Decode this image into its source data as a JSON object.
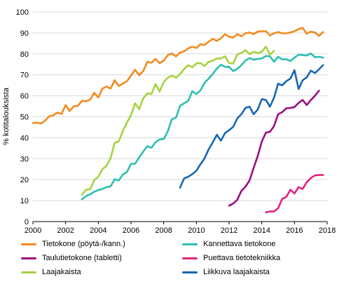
{
  "chart_data": {
    "type": "line",
    "title": "",
    "xlabel": "",
    "ylabel": "% kotitalouksista",
    "xlim": [
      2000,
      2018
    ],
    "ylim": [
      0,
      100
    ],
    "x_ticks": [
      "2000",
      "2002",
      "2004",
      "2006",
      "2008",
      "2010",
      "2012",
      "2014",
      "2016",
      "2018"
    ],
    "y_ticks": [
      "0",
      "10",
      "20",
      "30",
      "40",
      "50",
      "60",
      "70",
      "80",
      "90",
      "100"
    ],
    "grid": "horizontal",
    "legend_position": "bottom",
    "series": [
      {
        "name": "Tietokone (pöytä-/kann.)",
        "color": "#f28a1e",
        "points": [
          [
            2000.0,
            47
          ],
          [
            2000.25,
            47.2
          ],
          [
            2000.5,
            46.8
          ],
          [
            2000.75,
            48.2
          ],
          [
            2001.0,
            50.2
          ],
          [
            2001.25,
            50.7
          ],
          [
            2001.5,
            52
          ],
          [
            2001.75,
            51.3
          ],
          [
            2002.0,
            55.6
          ],
          [
            2002.25,
            52.7
          ],
          [
            2002.5,
            55
          ],
          [
            2002.75,
            55.2
          ],
          [
            2003.0,
            57.6
          ],
          [
            2003.25,
            57.4
          ],
          [
            2003.5,
            58.2
          ],
          [
            2003.75,
            61.4
          ],
          [
            2004.0,
            59.2
          ],
          [
            2004.25,
            63.4
          ],
          [
            2004.5,
            64.4
          ],
          [
            2004.75,
            63.4
          ],
          [
            2005.0,
            67.4
          ],
          [
            2005.25,
            64.6
          ],
          [
            2005.5,
            65.8
          ],
          [
            2005.75,
            67
          ],
          [
            2006.0,
            69.6
          ],
          [
            2006.25,
            72.4
          ],
          [
            2006.5,
            69.8
          ],
          [
            2006.75,
            71.8
          ],
          [
            2007.0,
            76.2
          ],
          [
            2007.25,
            75.8
          ],
          [
            2007.5,
            77.6
          ],
          [
            2007.75,
            75.6
          ],
          [
            2008.0,
            76.8
          ],
          [
            2008.25,
            79.4
          ],
          [
            2008.5,
            80.2
          ],
          [
            2008.75,
            78.8
          ],
          [
            2009.0,
            80.6
          ],
          [
            2009.25,
            81.2
          ],
          [
            2009.5,
            82.6
          ],
          [
            2009.75,
            83.4
          ],
          [
            2010.0,
            82.8
          ],
          [
            2010.25,
            84.6
          ],
          [
            2010.5,
            84.2
          ],
          [
            2010.75,
            85.8
          ],
          [
            2011.0,
            87.2
          ],
          [
            2011.25,
            86.2
          ],
          [
            2011.5,
            87.4
          ],
          [
            2011.75,
            89.4
          ],
          [
            2012.0,
            88.2
          ],
          [
            2012.25,
            87.8
          ],
          [
            2012.5,
            89.4
          ],
          [
            2012.75,
            88.4
          ],
          [
            2013.0,
            89.8
          ],
          [
            2013.25,
            90.2
          ],
          [
            2013.5,
            89.4
          ],
          [
            2013.75,
            90.6
          ],
          [
            2014.0,
            90.8
          ],
          [
            2014.25,
            90.8
          ],
          [
            2014.5,
            88.8
          ],
          [
            2014.75,
            89.8
          ],
          [
            2015.0,
            90.4
          ],
          [
            2015.25,
            89.8
          ],
          [
            2015.5,
            89.8
          ],
          [
            2015.75,
            90.2
          ],
          [
            2016.0,
            90.8
          ],
          [
            2016.25,
            91.8
          ],
          [
            2016.5,
            92.4
          ],
          [
            2016.75,
            89.6
          ],
          [
            2017.0,
            90.6
          ],
          [
            2017.25,
            90.2
          ],
          [
            2017.5,
            88.6
          ],
          [
            2017.75,
            90.4
          ]
        ]
      },
      {
        "name": "Kannettava tietokone",
        "color": "#2ebfb0",
        "points": [
          [
            2003.0,
            10.6
          ],
          [
            2003.25,
            12.2
          ],
          [
            2003.5,
            13
          ],
          [
            2003.75,
            14.2
          ],
          [
            2004.0,
            15
          ],
          [
            2004.25,
            15.6
          ],
          [
            2004.5,
            16.4
          ],
          [
            2004.75,
            16.8
          ],
          [
            2005.0,
            20.2
          ],
          [
            2005.25,
            19.6
          ],
          [
            2005.5,
            22.4
          ],
          [
            2005.75,
            23.6
          ],
          [
            2006.0,
            27.6
          ],
          [
            2006.25,
            27.6
          ],
          [
            2006.5,
            30.6
          ],
          [
            2006.75,
            33.4
          ],
          [
            2007.0,
            36
          ],
          [
            2007.25,
            35.2
          ],
          [
            2007.5,
            37.8
          ],
          [
            2007.75,
            39.2
          ],
          [
            2008.0,
            39.4
          ],
          [
            2008.25,
            43
          ],
          [
            2008.5,
            48.8
          ],
          [
            2008.75,
            49.6
          ],
          [
            2009.0,
            55.2
          ],
          [
            2009.25,
            56.4
          ],
          [
            2009.5,
            57.6
          ],
          [
            2009.75,
            62.2
          ],
          [
            2010.0,
            60.8
          ],
          [
            2010.25,
            62.6
          ],
          [
            2010.5,
            66.2
          ],
          [
            2010.75,
            68.2
          ],
          [
            2011.0,
            70.4
          ],
          [
            2011.25,
            73
          ],
          [
            2011.5,
            74.8
          ],
          [
            2011.75,
            73.8
          ],
          [
            2012.0,
            73.8
          ],
          [
            2012.25,
            71.8
          ],
          [
            2012.5,
            72.8
          ],
          [
            2012.75,
            74.6
          ],
          [
            2013.0,
            76.8
          ],
          [
            2013.25,
            78
          ],
          [
            2013.5,
            77.2
          ],
          [
            2013.75,
            77.6
          ],
          [
            2014.0,
            77.8
          ],
          [
            2014.25,
            79
          ],
          [
            2014.5,
            78.8
          ],
          [
            2014.75,
            76.2
          ],
          [
            2015.0,
            78.6
          ],
          [
            2015.25,
            77.4
          ],
          [
            2015.5,
            77.4
          ],
          [
            2015.75,
            76.6
          ],
          [
            2016.0,
            78.2
          ],
          [
            2016.25,
            79.6
          ],
          [
            2016.5,
            79.4
          ],
          [
            2016.75,
            79.2
          ],
          [
            2017.0,
            80.2
          ],
          [
            2017.25,
            78.4
          ],
          [
            2017.5,
            78.6
          ],
          [
            2017.75,
            78.2
          ]
        ]
      },
      {
        "name": "Taulutietokone (tabletti)",
        "color": "#9a0f80",
        "points": [
          [
            2012.0,
            7.6
          ],
          [
            2012.25,
            8.6
          ],
          [
            2012.5,
            10.4
          ],
          [
            2012.75,
            14.6
          ],
          [
            2013.0,
            16.6
          ],
          [
            2013.25,
            19.6
          ],
          [
            2013.5,
            25.6
          ],
          [
            2013.75,
            31.2
          ],
          [
            2014.0,
            38.2
          ],
          [
            2014.25,
            42.4
          ],
          [
            2014.5,
            42.8
          ],
          [
            2014.75,
            45.6
          ],
          [
            2015.0,
            51.2
          ],
          [
            2015.25,
            52.2
          ],
          [
            2015.5,
            54
          ],
          [
            2015.75,
            54.2
          ],
          [
            2016.0,
            54.6
          ],
          [
            2016.25,
            56.6
          ],
          [
            2016.5,
            58
          ],
          [
            2016.75,
            55.6
          ],
          [
            2017.0,
            58
          ],
          [
            2017.25,
            60
          ],
          [
            2017.5,
            62.4
          ]
        ]
      },
      {
        "name": "Puettava tietotekniikka",
        "color": "#e0247d",
        "points": [
          [
            2014.25,
            4.4
          ],
          [
            2014.5,
            4.8
          ],
          [
            2014.75,
            4.8
          ],
          [
            2015.0,
            6.4
          ],
          [
            2015.25,
            10.8
          ],
          [
            2015.5,
            11.8
          ],
          [
            2015.75,
            15.2
          ],
          [
            2016.0,
            13.4
          ],
          [
            2016.25,
            16.4
          ],
          [
            2016.5,
            15.6
          ],
          [
            2016.75,
            18.8
          ],
          [
            2017.0,
            20.8
          ],
          [
            2017.25,
            22
          ],
          [
            2017.5,
            22.2
          ],
          [
            2017.75,
            22.2
          ]
        ]
      },
      {
        "name": "Laajakaista",
        "color": "#a6d23e",
        "points": [
          [
            2003.0,
            12.8
          ],
          [
            2003.25,
            15.2
          ],
          [
            2003.5,
            15.4
          ],
          [
            2003.75,
            19.8
          ],
          [
            2004.0,
            21.4
          ],
          [
            2004.25,
            25
          ],
          [
            2004.5,
            26.6
          ],
          [
            2004.75,
            30.2
          ],
          [
            2005.0,
            37.6
          ],
          [
            2005.25,
            38.2
          ],
          [
            2005.5,
            43.2
          ],
          [
            2005.75,
            47.2
          ],
          [
            2006.0,
            50.8
          ],
          [
            2006.25,
            56.4
          ],
          [
            2006.5,
            53.6
          ],
          [
            2006.75,
            58.8
          ],
          [
            2007.0,
            61.2
          ],
          [
            2007.25,
            60.8
          ],
          [
            2007.5,
            65.6
          ],
          [
            2007.75,
            62
          ],
          [
            2008.0,
            66.6
          ],
          [
            2008.25,
            68.6
          ],
          [
            2008.5,
            69.6
          ],
          [
            2008.75,
            68.6
          ],
          [
            2009.0,
            70.4
          ],
          [
            2009.25,
            72.8
          ],
          [
            2009.5,
            74.6
          ],
          [
            2009.75,
            73.6
          ],
          [
            2010.0,
            75.4
          ],
          [
            2010.25,
            75.6
          ],
          [
            2010.5,
            74.2
          ],
          [
            2010.75,
            76.2
          ],
          [
            2011.0,
            76.8
          ],
          [
            2011.25,
            77.8
          ],
          [
            2011.5,
            77.8
          ],
          [
            2011.75,
            78.8
          ],
          [
            2012.0,
            75.6
          ],
          [
            2012.25,
            75.4
          ],
          [
            2012.5,
            79.8
          ],
          [
            2012.75,
            80.4
          ],
          [
            2013.0,
            81.8
          ],
          [
            2013.25,
            79.8
          ],
          [
            2013.5,
            81
          ],
          [
            2013.75,
            80.4
          ],
          [
            2014.0,
            81
          ],
          [
            2014.25,
            83.4
          ],
          [
            2014.5,
            79.6
          ],
          [
            2014.75,
            81.4
          ]
        ]
      },
      {
        "name": "Liikkuva laajakaista",
        "color": "#1767b3",
        "points": [
          [
            2009.0,
            16.2
          ],
          [
            2009.25,
            20.6
          ],
          [
            2009.5,
            21.4
          ],
          [
            2009.75,
            22.6
          ],
          [
            2010.0,
            24.2
          ],
          [
            2010.25,
            27.4
          ],
          [
            2010.5,
            30.2
          ],
          [
            2010.75,
            34.4
          ],
          [
            2011.0,
            37.8
          ],
          [
            2011.25,
            41.4
          ],
          [
            2011.5,
            38.6
          ],
          [
            2011.75,
            42.2
          ],
          [
            2012.0,
            43.6
          ],
          [
            2012.25,
            45.2
          ],
          [
            2012.5,
            49.2
          ],
          [
            2012.75,
            51.2
          ],
          [
            2013.0,
            54.2
          ],
          [
            2013.25,
            54.8
          ],
          [
            2013.5,
            51.2
          ],
          [
            2013.75,
            53.4
          ],
          [
            2014.0,
            58.4
          ],
          [
            2014.25,
            58
          ],
          [
            2014.5,
            54.8
          ],
          [
            2014.75,
            59.2
          ],
          [
            2015.0,
            65.8
          ],
          [
            2015.25,
            65
          ],
          [
            2015.5,
            67
          ],
          [
            2015.75,
            68.2
          ],
          [
            2016.0,
            72.2
          ],
          [
            2016.25,
            63.2
          ],
          [
            2016.5,
            67.4
          ],
          [
            2016.75,
            68.8
          ],
          [
            2017.0,
            72
          ],
          [
            2017.25,
            70.8
          ],
          [
            2017.5,
            72.6
          ],
          [
            2017.75,
            74.6
          ]
        ]
      }
    ]
  }
}
